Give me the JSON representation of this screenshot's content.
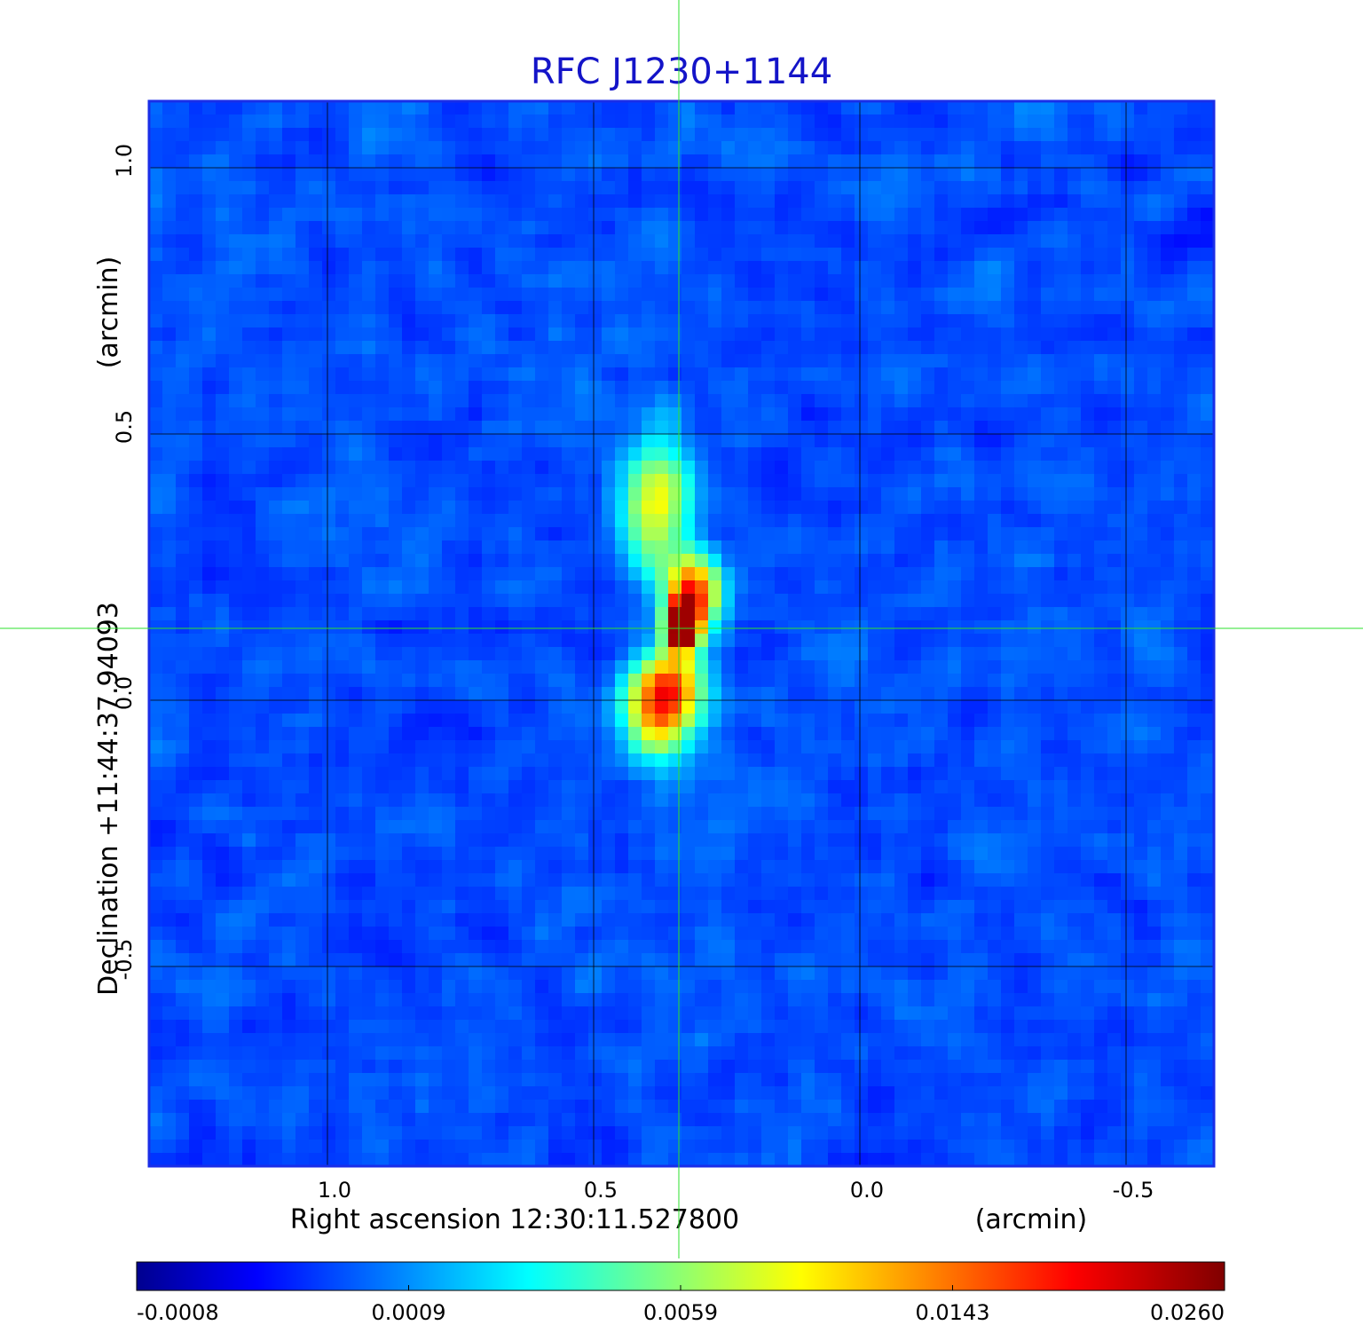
{
  "chart_data": {
    "type": "heatmap",
    "title": "RFC J1230+1144",
    "xlabel": "Right ascension  12:30:11.527800",
    "xunit": "(arcmin)",
    "ylabel": "Declination  +11:44:37.94093",
    "yunit": "(arcmin)",
    "x_ticks": [
      {
        "value": 1.0,
        "label": "1.0"
      },
      {
        "value": 0.5,
        "label": "0.5"
      },
      {
        "value": 0.0,
        "label": "0.0"
      },
      {
        "value": -0.5,
        "label": "-0.5"
      }
    ],
    "y_ticks": [
      {
        "value": 1.0,
        "label": "1.0"
      },
      {
        "value": 0.5,
        "label": "0.5"
      },
      {
        "value": 0.0,
        "label": "0.0"
      },
      {
        "value": -0.5,
        "label": "-0.5"
      }
    ],
    "xlim": [
      1.335,
      -0.665
    ],
    "ylim": [
      -0.875,
      1.125
    ],
    "grid": true,
    "crosshair": {
      "x": 0.34,
      "y": 0.135
    },
    "colormap": "jet",
    "colorbar": {
      "ticks": [
        {
          "label": "-0.0008"
        },
        {
          "label": "0.0009"
        },
        {
          "label": "0.0059"
        },
        {
          "label": "0.0143"
        },
        {
          "label": "0.0260"
        }
      ]
    },
    "components": [
      {
        "x": 0.335,
        "y": 0.14,
        "sx": 0.02,
        "sy": 0.03,
        "peak": 1.0
      },
      {
        "x": 0.31,
        "y": 0.2,
        "sx": 0.035,
        "sy": 0.05,
        "peak": 0.62
      },
      {
        "x": 0.38,
        "y": 0.36,
        "sx": 0.045,
        "sy": 0.09,
        "peak": 0.42
      },
      {
        "x": 0.36,
        "y": 0.03,
        "sx": 0.05,
        "sy": 0.05,
        "peak": 0.55
      },
      {
        "x": 0.38,
        "y": -0.05,
        "sx": 0.045,
        "sy": 0.05,
        "peak": 0.38
      }
    ],
    "background_level": 0.2,
    "noise_amplitude": 0.045
  },
  "colors": {
    "title": "#1414c8",
    "frame": "#1a2ee8",
    "grid": "#000000",
    "crosshair": "#2ee02e",
    "text": "#000000"
  }
}
